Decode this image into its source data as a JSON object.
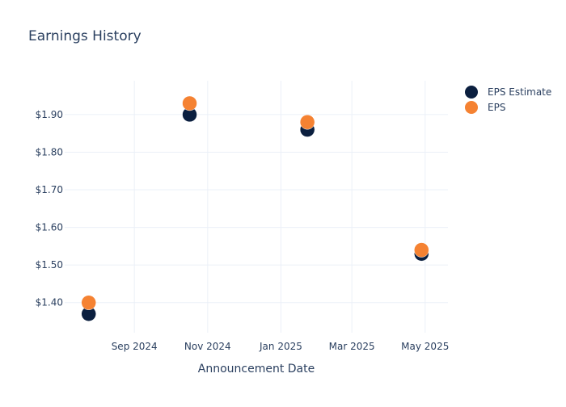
{
  "chart_data": {
    "type": "scatter",
    "title": "Earnings History",
    "xlabel": "Announcement Date",
    "ylabel": "",
    "x_type": "date",
    "xlim": [
      "2024-07-05",
      "2025-05-20"
    ],
    "ylim": [
      1.32,
      1.99
    ],
    "x_ticks": [
      "2024-09-01",
      "2024-11-01",
      "2025-01-01",
      "2025-03-01",
      "2025-05-01"
    ],
    "x_tick_labels": [
      "Sep 2024",
      "Nov 2024",
      "Jan 2025",
      "Mar 2025",
      "May 2025"
    ],
    "y_ticks": [
      1.4,
      1.5,
      1.6,
      1.7,
      1.8,
      1.9
    ],
    "y_tick_labels": [
      "$1.40",
      "$1.50",
      "$1.60",
      "$1.70",
      "$1.80",
      "$1.90"
    ],
    "grid": true,
    "legend_position": "top-right",
    "series": [
      {
        "name": "EPS Estimate",
        "color": "#0b1f3f",
        "points": [
          {
            "x": "2024-07-25",
            "y": 1.37
          },
          {
            "x": "2024-10-17",
            "y": 1.9
          },
          {
            "x": "2025-01-23",
            "y": 1.86
          },
          {
            "x": "2025-04-28",
            "y": 1.53
          }
        ]
      },
      {
        "name": "EPS",
        "color": "#f58232",
        "points": [
          {
            "x": "2024-07-25",
            "y": 1.4
          },
          {
            "x": "2024-10-17",
            "y": 1.93
          },
          {
            "x": "2025-01-23",
            "y": 1.88
          },
          {
            "x": "2025-04-28",
            "y": 1.54
          }
        ]
      }
    ]
  }
}
